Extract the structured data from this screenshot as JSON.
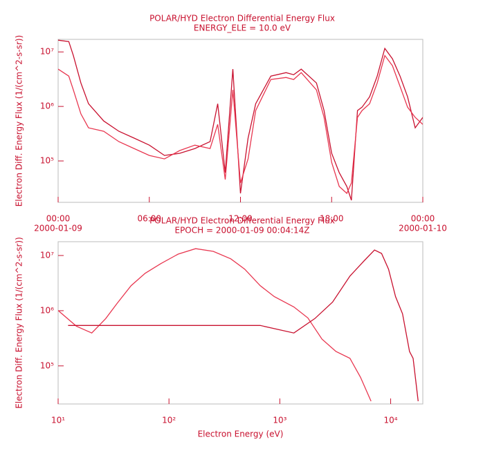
{
  "chart_data": [
    {
      "type": "line",
      "title": "POLAR/HYD Electron Differential Energy Flux",
      "subtitle": "ENERGY_ELE = 10.0 eV",
      "ylabel": "Electron Diff. Energy Flux (1/(cm^2-s-sr))",
      "x": [
        0,
        0.7,
        1,
        1.5,
        2,
        3,
        4,
        5,
        6,
        7,
        8,
        9,
        10,
        10.5,
        11,
        11.5,
        12,
        12.5,
        13,
        14,
        15,
        15.5,
        16,
        17,
        17.5,
        18,
        18.5,
        19,
        19.3,
        19.7,
        20,
        20.5,
        21,
        21.5,
        22,
        22.5,
        23,
        23.5,
        24
      ],
      "xlim": [
        0,
        24
      ],
      "xticks": [
        {
          "value": 0,
          "label": "00:00"
        },
        {
          "value": 6,
          "label": "06:00"
        },
        {
          "value": 12,
          "label": "12:00"
        },
        {
          "value": 18,
          "label": "18:00"
        },
        {
          "value": 24,
          "label": "00:00"
        }
      ],
      "xtick_dates": [
        "2000-01-09",
        "2000-01-10"
      ],
      "ylim": [
        17400,
        17000000
      ],
      "ylog": true,
      "yticks": [
        {
          "value": 100000,
          "label": "10⁵"
        },
        {
          "value": 1000000,
          "label": "10⁶"
        },
        {
          "value": 10000000,
          "label": "10⁷"
        }
      ],
      "series": [
        {
          "color": "#c8102e",
          "values": [
            16400000,
            15500000,
            8600000,
            2690000,
            1120000,
            540000,
            350000,
            262000,
            195000,
            126000,
            138000,
            169000,
            226000,
            1120000,
            61000,
            4830000,
            25400,
            262000,
            1120000,
            3600000,
            4170000,
            3820000,
            4830000,
            2690000,
            840000,
            138000,
            61000,
            34000,
            19000,
            840000,
            970000,
            1500000,
            3600000,
            11600000,
            7500000,
            3600000,
            1500000,
            405000,
            630000
          ]
        },
        {
          "color": "#e8364f",
          "values": [
            4830000,
            3600000,
            2010000,
            730000,
            405000,
            350000,
            226000,
            169000,
            126000,
            109000,
            155000,
            195000,
            169000,
            469000,
            45500,
            2010000,
            39400,
            109000,
            840000,
            3120000,
            3400000,
            3120000,
            4170000,
            2010000,
            630000,
            94000,
            34000,
            25400,
            39400,
            630000,
            840000,
            1120000,
            2690000,
            8600000,
            5600000,
            2330000,
            970000,
            630000,
            469000
          ]
        }
      ]
    },
    {
      "type": "line",
      "title": "POLAR/HYD Electron Differential Energy Flux",
      "subtitle": "EPOCH = 2000-01-09 00:04:14Z",
      "xlabel": "Electron Energy (eV)",
      "ylabel": "Electron Diff. Energy Flux (1/(cm^2-s-sr))",
      "xlim": [
        10,
        19500
      ],
      "xlog": true,
      "xticks": [
        {
          "value": 10,
          "label": "10¹"
        },
        {
          "value": 100,
          "label": "10²"
        },
        {
          "value": 1000,
          "label": "10³"
        },
        {
          "value": 10000,
          "label": "10⁴"
        }
      ],
      "ylim": [
        20400,
        17800000
      ],
      "ylog": true,
      "yticks": [
        {
          "value": 100000,
          "label": "10⁵"
        },
        {
          "value": 1000000,
          "label": "10⁶"
        },
        {
          "value": 10000000,
          "label": "10⁷"
        }
      ],
      "series": [
        {
          "color": "#e8364f",
          "x": [
            10,
            14.6,
            20.1,
            26.9,
            34,
            45.5,
            60.9,
            84,
            121,
            174,
            251,
            361,
            483,
            665,
            890,
            1340,
            1790,
            2400,
            3210,
            4290,
            5350,
            6650
          ],
          "values": [
            1010000,
            525000,
            394000,
            720000,
            1350000,
            2840000,
            4750000,
            7100000,
            10600000,
            13300000,
            11900000,
            8700000,
            5650000,
            2840000,
            1800000,
            1170000,
            740000,
            305000,
            182000,
            137000,
            62000,
            22900
          ]
        },
        {
          "color": "#c8102e",
          "x": [
            12.3,
            665,
            1340,
            2070,
            2990,
            4290,
            5740,
            7150,
            8280,
            9570,
            11070,
            12800,
            14800,
            15950,
            17700
          ],
          "values": [
            540000,
            540000,
            394000,
            720000,
            1430000,
            4240000,
            7950000,
            12600000,
            10900000,
            5650000,
            1800000,
            880000,
            182000,
            137000,
            22900
          ]
        }
      ]
    }
  ]
}
